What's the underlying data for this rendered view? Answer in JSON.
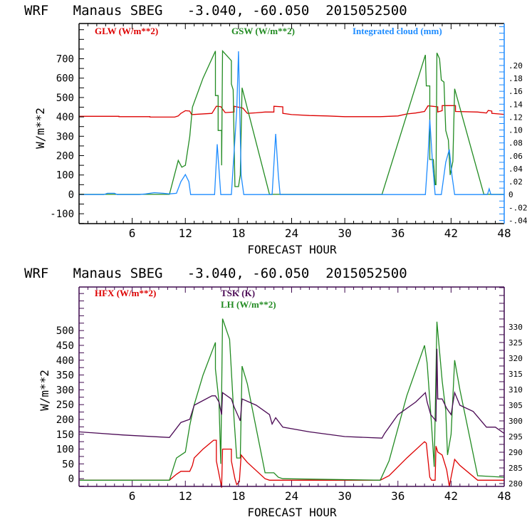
{
  "chart_data": [
    {
      "type": "line",
      "title": "WRF   Manaus SBEG   -3.040, -60.050  2015052500",
      "xlabel": "FORECAST HOUR",
      "ylabel": "W/m**2",
      "xlim": [
        0,
        48
      ],
      "ylim": [
        -151,
        882
      ],
      "y2lim": [
        -0.045,
        0.265
      ],
      "xticks": [
        6,
        12,
        18,
        24,
        30,
        36,
        42,
        48
      ],
      "yticks": [
        -100,
        0,
        100,
        200,
        300,
        400,
        500,
        600,
        700
      ],
      "y2ticks": [
        -0.04,
        -0.02,
        0,
        0.02,
        0.04,
        0.06,
        0.08,
        0.1,
        0.12,
        0.14,
        0.16,
        0.18,
        0.2
      ],
      "y2ticklabels": [
        "-.04",
        "-.02",
        "0",
        ".02",
        ".04",
        ".06",
        ".08",
        ".10",
        ".12",
        ".14",
        ".16",
        ".18",
        ".20"
      ],
      "axis_color": "#000000",
      "y2_axis_color": "#1e8cff",
      "series": [
        {
          "name": "GLW (W/m**2)",
          "color": "#dd0000",
          "axis": "left",
          "legend": "top-left",
          "points": [
            [
              0,
              403
            ],
            [
              4.5,
              403
            ],
            [
              4.5,
              401
            ],
            [
              8,
              401
            ],
            [
              8,
              399
            ],
            [
              10.8,
              399
            ],
            [
              11.2,
              405
            ],
            [
              11.5,
              418
            ],
            [
              12,
              432
            ],
            [
              12.5,
              430
            ],
            [
              12.7,
              412
            ],
            [
              13.5,
              414
            ],
            [
              15,
              418
            ],
            [
              15.5,
              455
            ],
            [
              16,
              453
            ],
            [
              16.5,
              422
            ],
            [
              17.5,
              425
            ],
            [
              17.5,
              455
            ],
            [
              18.5,
              445
            ],
            [
              19,
              418
            ],
            [
              20,
              421
            ],
            [
              21,
              425
            ],
            [
              22,
              425
            ],
            [
              22,
              455
            ],
            [
              23,
              452
            ],
            [
              23,
              418
            ],
            [
              24,
              412
            ],
            [
              26,
              407
            ],
            [
              28,
              405
            ],
            [
              30,
              401
            ],
            [
              34,
              401
            ],
            [
              36,
              405
            ],
            [
              37,
              415
            ],
            [
              38,
              420
            ],
            [
              39,
              428
            ],
            [
              39.4,
              457
            ],
            [
              40.5,
              452
            ],
            [
              40.5,
              425
            ],
            [
              41,
              432
            ],
            [
              41,
              458
            ],
            [
              42.5,
              458
            ],
            [
              42.5,
              428
            ],
            [
              45,
              425
            ],
            [
              46,
              420
            ],
            [
              46.2,
              433
            ],
            [
              46.6,
              430
            ],
            [
              46.6,
              418
            ],
            [
              48,
              413
            ]
          ]
        },
        {
          "name": "GSW (W/m**2)",
          "color": "#228b22",
          "axis": "left",
          "legend": "top-center",
          "points": [
            [
              0,
              0
            ],
            [
              10.2,
              0
            ],
            [
              11.2,
              175
            ],
            [
              11.6,
              140
            ],
            [
              12,
              150
            ],
            [
              12.5,
              300
            ],
            [
              12.8,
              450
            ],
            [
              14,
              600
            ],
            [
              15.4,
              740
            ],
            [
              15.4,
              510
            ],
            [
              15.7,
              510
            ],
            [
              15.7,
              330
            ],
            [
              16.1,
              330
            ],
            [
              16.1,
              150
            ],
            [
              16.2,
              740
            ],
            [
              17.2,
              690
            ],
            [
              17.2,
              570
            ],
            [
              17.4,
              540
            ],
            [
              17.6,
              40
            ],
            [
              18,
              40
            ],
            [
              18.2,
              100
            ],
            [
              18.4,
              550
            ],
            [
              21.5,
              0
            ],
            [
              34.2,
              0
            ],
            [
              39.1,
              720
            ],
            [
              39.2,
              560
            ],
            [
              39.6,
              560
            ],
            [
              39.6,
              180
            ],
            [
              40,
              180
            ],
            [
              40.2,
              50
            ],
            [
              40.3,
              50
            ],
            [
              40.4,
              730
            ],
            [
              40.7,
              700
            ],
            [
              40.9,
              590
            ],
            [
              41.2,
              580
            ],
            [
              41.4,
              330
            ],
            [
              41.7,
              280
            ],
            [
              41.9,
              100
            ],
            [
              42.2,
              170
            ],
            [
              42.4,
              545
            ],
            [
              45.7,
              0
            ],
            [
              48,
              0
            ]
          ]
        },
        {
          "name": "Integrated cloud (mm)",
          "color": "#1e8cff",
          "axis": "right",
          "legend": "top-right",
          "points": [
            [
              0,
              0
            ],
            [
              2.8,
              0
            ],
            [
              3.2,
              0.002
            ],
            [
              4,
              0.002
            ],
            [
              4.3,
              0
            ],
            [
              6.8,
              0
            ],
            [
              7.5,
              0.001
            ],
            [
              8.5,
              0.003
            ],
            [
              9.5,
              0.002
            ],
            [
              10.2,
              0.001
            ],
            [
              11,
              0.002
            ],
            [
              11.5,
              0.02
            ],
            [
              12,
              0.031
            ],
            [
              12.4,
              0.02
            ],
            [
              12.6,
              0
            ],
            [
              15.3,
              0
            ],
            [
              15.6,
              0.078
            ],
            [
              16,
              0
            ],
            [
              17.2,
              0
            ],
            [
              17.8,
              0.13
            ],
            [
              18,
              0.222
            ],
            [
              18.3,
              0.03
            ],
            [
              18.6,
              0
            ],
            [
              21.8,
              0
            ],
            [
              22.2,
              0.094
            ],
            [
              22.5,
              0.03
            ],
            [
              22.7,
              0
            ],
            [
              39.1,
              0
            ],
            [
              39.4,
              0.06
            ],
            [
              39.6,
              0.116
            ],
            [
              39.9,
              0.05
            ],
            [
              40.2,
              0
            ],
            [
              40.9,
              0
            ],
            [
              41.4,
              0.05
            ],
            [
              41.8,
              0.07
            ],
            [
              42.1,
              0.03
            ],
            [
              42.4,
              0
            ],
            [
              46.1,
              0
            ],
            [
              46.3,
              0.009
            ],
            [
              46.5,
              0
            ],
            [
              48,
              0
            ]
          ]
        }
      ]
    },
    {
      "type": "line",
      "title": "WRF   Manaus SBEG   -3.040, -60.050  2015052500",
      "xlabel": "FORECAST HOUR",
      "ylabel": "W/m**2",
      "xlim": [
        0,
        48
      ],
      "ylim": [
        -26,
        647
      ],
      "y2lim": [
        279.1,
        342.7
      ],
      "xticks": [
        6,
        12,
        18,
        24,
        30,
        36,
        42,
        48
      ],
      "yticks": [
        0,
        50,
        100,
        150,
        200,
        250,
        300,
        350,
        400,
        450,
        500
      ],
      "y2ticks": [
        280,
        285,
        290,
        295,
        300,
        305,
        310,
        315,
        320,
        325,
        330
      ],
      "y2ticklabels": [
        "280",
        "285",
        "290",
        "295",
        "300",
        "305",
        "310",
        "315",
        "320",
        "325",
        "330"
      ],
      "axis_color": "#3f0a4f",
      "y2_axis_color": "#3f0a4f",
      "series": [
        {
          "name": "HFX (W/m**2)",
          "color": "#dd0000",
          "axis": "left",
          "legend": "top-left",
          "points": [
            [
              0,
              -5
            ],
            [
              10.2,
              -5
            ],
            [
              11,
              15
            ],
            [
              11.5,
              25
            ],
            [
              12.5,
              25
            ],
            [
              12.8,
              45
            ],
            [
              13,
              70
            ],
            [
              14,
              100
            ],
            [
              15.2,
              130
            ],
            [
              15.5,
              130
            ],
            [
              15.5,
              60
            ],
            [
              15.9,
              0
            ],
            [
              16.1,
              -30
            ],
            [
              16.2,
              100
            ],
            [
              17.2,
              100
            ],
            [
              17.2,
              60
            ],
            [
              17.6,
              0
            ],
            [
              17.8,
              -20
            ],
            [
              18.1,
              -10
            ],
            [
              18.3,
              80
            ],
            [
              19,
              55
            ],
            [
              21,
              0
            ],
            [
              21.5,
              -5
            ],
            [
              23,
              -5
            ],
            [
              34,
              -5
            ],
            [
              35,
              10
            ],
            [
              37,
              70
            ],
            [
              39,
              125
            ],
            [
              39.2,
              120
            ],
            [
              39.6,
              5
            ],
            [
              39.8,
              -5
            ],
            [
              40.2,
              -5
            ],
            [
              40.3,
              110
            ],
            [
              40.5,
              90
            ],
            [
              41,
              80
            ],
            [
              41.5,
              30
            ],
            [
              41.8,
              -25
            ],
            [
              42.4,
              65
            ],
            [
              43,
              45
            ],
            [
              45,
              -5
            ],
            [
              48,
              -5
            ]
          ]
        },
        {
          "name": "LH  (W/m**2)",
          "color": "#228b22",
          "axis": "left",
          "legend": "top-left-second",
          "points": [
            [
              0,
              -5
            ],
            [
              10.2,
              -5
            ],
            [
              11,
              70
            ],
            [
              11.5,
              80
            ],
            [
              12,
              90
            ],
            [
              12.5,
              180
            ],
            [
              13,
              250
            ],
            [
              14,
              350
            ],
            [
              15.4,
              460
            ],
            [
              15.4,
              370
            ],
            [
              15.8,
              260
            ],
            [
              16,
              50
            ],
            [
              16.2,
              540
            ],
            [
              17,
              470
            ],
            [
              17.5,
              200
            ],
            [
              17.8,
              70
            ],
            [
              18.2,
              70
            ],
            [
              18.4,
              380
            ],
            [
              19,
              320
            ],
            [
              21,
              20
            ],
            [
              22,
              20
            ],
            [
              22.5,
              5
            ],
            [
              23,
              0
            ],
            [
              34,
              -5
            ],
            [
              35,
              60
            ],
            [
              37,
              280
            ],
            [
              39,
              450
            ],
            [
              39.3,
              390
            ],
            [
              39.8,
              180
            ],
            [
              40.1,
              40
            ],
            [
              40.4,
              530
            ],
            [
              41,
              330
            ],
            [
              41.4,
              230
            ],
            [
              41.6,
              80
            ],
            [
              42,
              150
            ],
            [
              42.4,
              400
            ],
            [
              43,
              300
            ],
            [
              45,
              10
            ],
            [
              48,
              5
            ]
          ]
        },
        {
          "name": "TSK (K)",
          "color": "#4b0a55",
          "axis": "right",
          "legend": "top-center",
          "points": [
            [
              0,
              296.5
            ],
            [
              5,
              295.5
            ],
            [
              10.2,
              294.7
            ],
            [
              11.5,
              299.5
            ],
            [
              12.5,
              300.5
            ],
            [
              13,
              305
            ],
            [
              15,
              308
            ],
            [
              15.4,
              308
            ],
            [
              15.8,
              306
            ],
            [
              16.1,
              302
            ],
            [
              16.2,
              309
            ],
            [
              17.2,
              307
            ],
            [
              17.5,
              304.5
            ],
            [
              18.2,
              300
            ],
            [
              18.4,
              307
            ],
            [
              20,
              305
            ],
            [
              21.5,
              302
            ],
            [
              21.8,
              299
            ],
            [
              22.2,
              301
            ],
            [
              23,
              298
            ],
            [
              26,
              296.5
            ],
            [
              30,
              295
            ],
            [
              34.2,
              294.5
            ],
            [
              34.5,
              296
            ],
            [
              36,
              302
            ],
            [
              38,
              306
            ],
            [
              39.1,
              309
            ],
            [
              39.3,
              306
            ],
            [
              39.7,
              302
            ],
            [
              40.3,
              300
            ],
            [
              40.4,
              323
            ],
            [
              40.5,
              307
            ],
            [
              41,
              307
            ],
            [
              41.5,
              304
            ],
            [
              42,
              302
            ],
            [
              42.4,
              309
            ],
            [
              43,
              305
            ],
            [
              44.5,
              303
            ],
            [
              46,
              298
            ],
            [
              47,
              298
            ],
            [
              48,
              296
            ]
          ]
        }
      ]
    }
  ]
}
